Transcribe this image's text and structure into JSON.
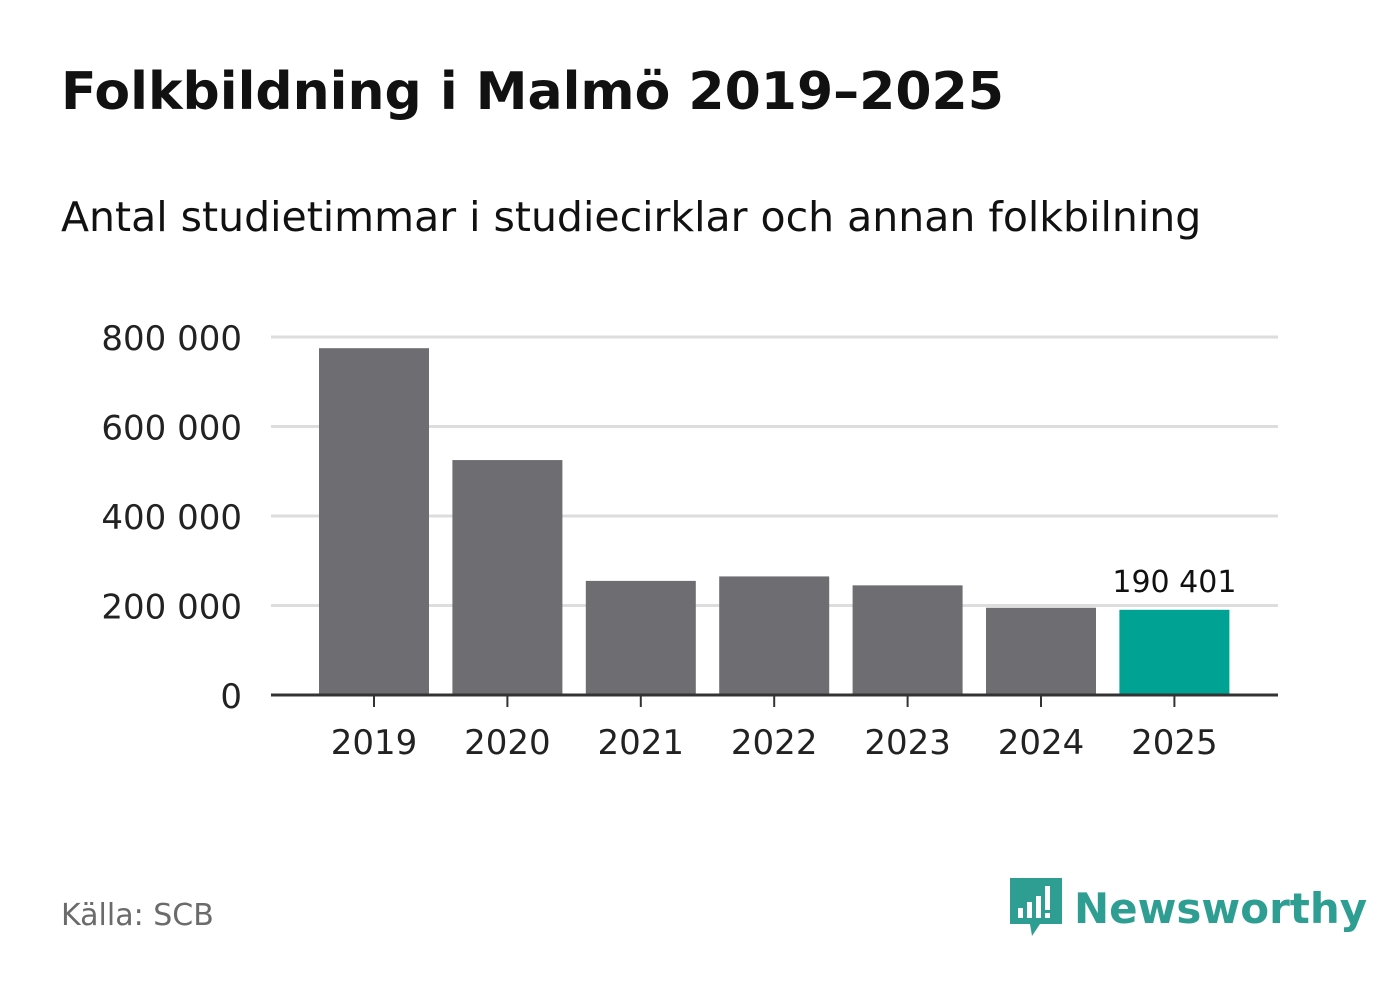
{
  "colors": {
    "bar_default": "#6e6d72",
    "bar_highlight": "#00a294",
    "grid": "#dddddd",
    "axis": "#333333",
    "brand": "#2f9e92",
    "source_text": "#6b6b6b"
  },
  "chart_data": {
    "type": "bar",
    "title": "Folkbildning i Malmö 2019–2025",
    "subtitle": "Antal studietimmar i studiecirklar och annan folkbilning",
    "xlabel": "",
    "ylabel": "",
    "ylim": [
      0,
      800000
    ],
    "yticks": [
      0,
      200000,
      400000,
      600000,
      800000
    ],
    "ytick_labels": [
      "0",
      "200 000",
      "400 000",
      "600 000",
      "800 000"
    ],
    "categories": [
      "2019",
      "2020",
      "2021",
      "2022",
      "2023",
      "2024",
      "2025"
    ],
    "values": [
      775000,
      525000,
      255000,
      265000,
      245000,
      195000,
      190401
    ],
    "highlight_index": 6,
    "data_labels": [
      {
        "index": 6,
        "text": "190 401"
      }
    ],
    "grid": true
  },
  "footer": {
    "source": "Källa: SCB",
    "brand_name": "Newsworthy",
    "brand_icon": "newsworthy-logo-icon"
  }
}
